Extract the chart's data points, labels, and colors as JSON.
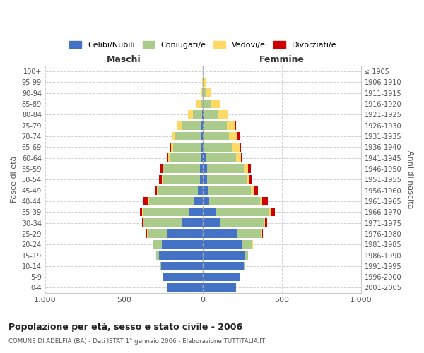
{
  "age_groups": [
    "0-4",
    "5-9",
    "10-14",
    "15-19",
    "20-24",
    "25-29",
    "30-34",
    "35-39",
    "40-44",
    "45-49",
    "50-54",
    "55-59",
    "60-64",
    "65-69",
    "70-74",
    "75-79",
    "80-84",
    "85-89",
    "90-94",
    "95-99",
    "100+"
  ],
  "birth_years": [
    "2001-2005",
    "1996-2000",
    "1991-1995",
    "1986-1990",
    "1981-1985",
    "1976-1980",
    "1971-1975",
    "1966-1970",
    "1961-1965",
    "1956-1960",
    "1951-1955",
    "1946-1950",
    "1941-1945",
    "1936-1940",
    "1931-1935",
    "1926-1930",
    "1921-1925",
    "1916-1920",
    "1911-1915",
    "1906-1910",
    "≤ 1905"
  ],
  "maschi": {
    "celibi": [
      225,
      250,
      265,
      280,
      260,
      230,
      130,
      85,
      55,
      30,
      20,
      20,
      15,
      15,
      15,
      10,
      5,
      0,
      0,
      0,
      0
    ],
    "coniugati": [
      0,
      0,
      5,
      15,
      55,
      120,
      245,
      295,
      285,
      255,
      235,
      230,
      195,
      175,
      160,
      125,
      60,
      15,
      5,
      2,
      0
    ],
    "vedovi": [
      0,
      0,
      0,
      0,
      5,
      5,
      5,
      5,
      5,
      5,
      5,
      5,
      10,
      12,
      20,
      25,
      30,
      25,
      10,
      5,
      0
    ],
    "divorziati": [
      0,
      0,
      0,
      0,
      0,
      5,
      5,
      15,
      30,
      15,
      20,
      20,
      10,
      10,
      5,
      5,
      0,
      0,
      0,
      0,
      0
    ]
  },
  "femmine": {
    "nubili": [
      210,
      235,
      260,
      265,
      250,
      215,
      110,
      80,
      40,
      30,
      25,
      25,
      15,
      10,
      10,
      5,
      5,
      0,
      0,
      0,
      0
    ],
    "coniugate": [
      0,
      0,
      5,
      20,
      60,
      155,
      280,
      340,
      320,
      275,
      250,
      235,
      195,
      175,
      155,
      145,
      90,
      50,
      20,
      5,
      0
    ],
    "vedove": [
      0,
      0,
      0,
      0,
      5,
      5,
      5,
      10,
      15,
      15,
      15,
      25,
      30,
      45,
      55,
      55,
      65,
      60,
      35,
      10,
      0
    ],
    "divorziate": [
      0,
      0,
      0,
      0,
      0,
      5,
      10,
      25,
      35,
      30,
      20,
      20,
      10,
      10,
      10,
      5,
      0,
      0,
      0,
      0,
      0
    ]
  },
  "colors": {
    "celibi": "#4472C4",
    "coniugati": "#AACB8C",
    "vedovi": "#FFD966",
    "divorziati": "#CC0000"
  },
  "title": "Popolazione per età, sesso e stato civile - 2006",
  "subtitle": "COMUNE DI ADELFIA (BA) - Dati ISTAT 1° gennaio 2006 - Elaborazione TUTTITALIA.IT",
  "xlabel_left": "Maschi",
  "xlabel_right": "Femmine",
  "ylabel_left": "Fasce di età",
  "ylabel_right": "Anni di nascita",
  "xlim": 1000,
  "bg_color": "#ffffff",
  "grid_color": "#cccccc",
  "legend_labels": [
    "Celibi/Nubili",
    "Coniugati/e",
    "Vedovi/e",
    "Divorziati/e"
  ]
}
